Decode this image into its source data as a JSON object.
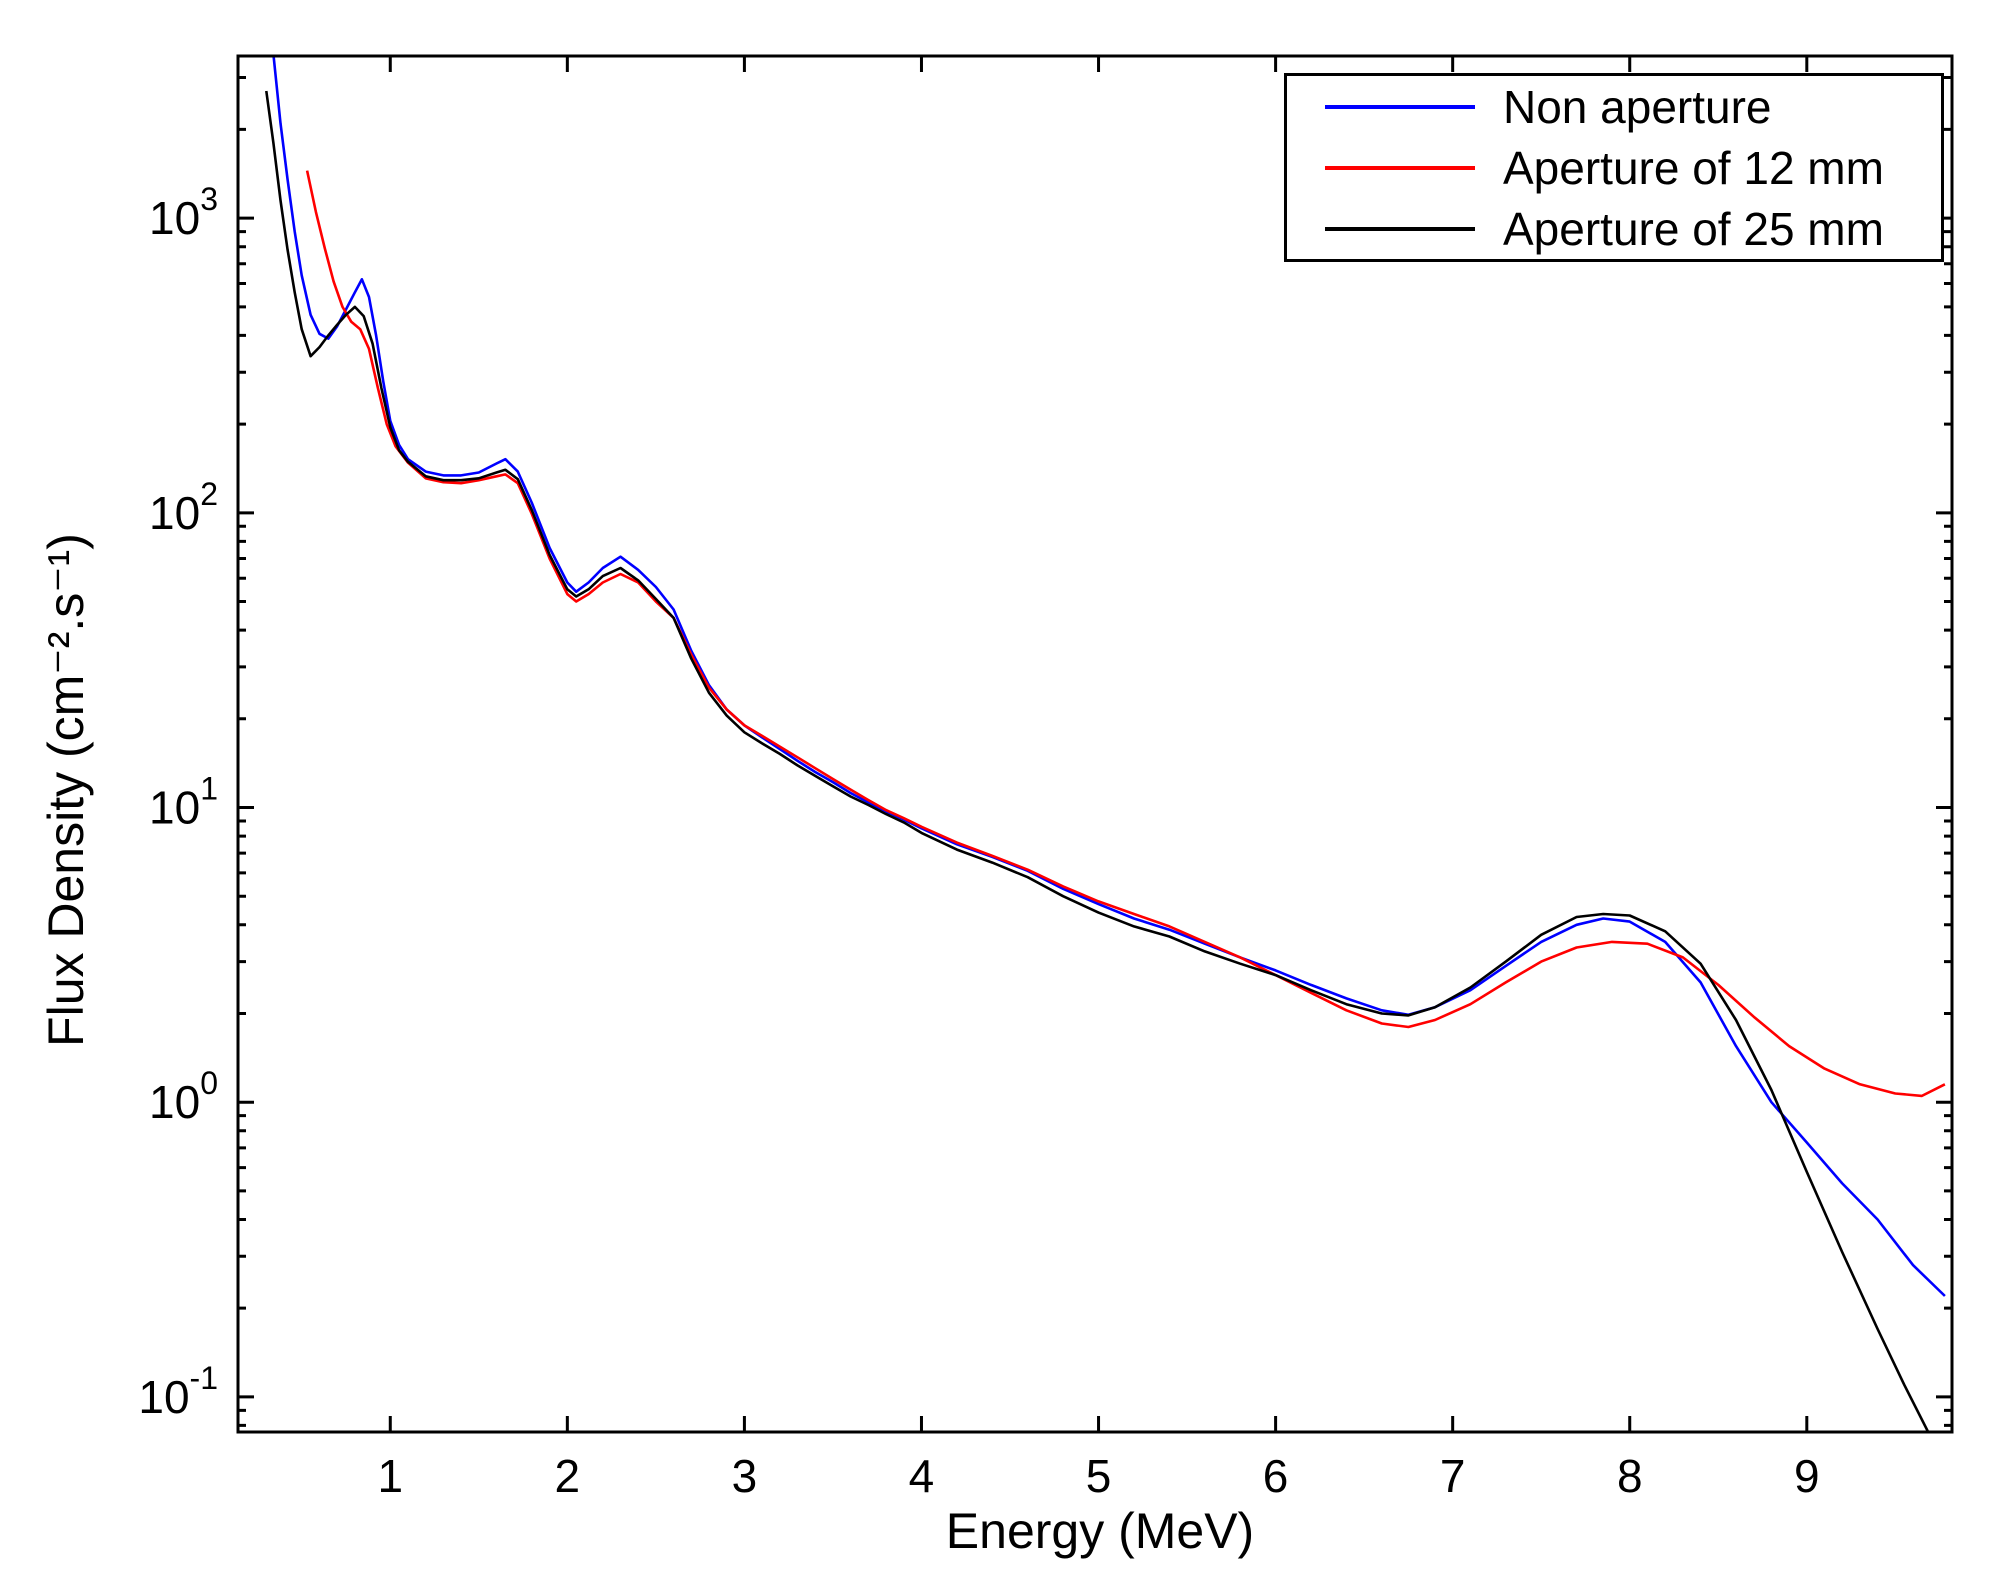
{
  "figure": {
    "background": "#ffffff"
  },
  "chart_data": {
    "type": "line",
    "title": "",
    "xlabel": "Energy (MeV)",
    "ylabel": "Flux Density (cm⁻².s⁻¹)",
    "x_ticks": [
      1,
      2,
      3,
      4,
      5,
      6,
      7,
      8,
      9
    ],
    "y_tick_base": 10,
    "y_tick_exponents": [
      -1,
      0,
      1,
      2,
      3
    ],
    "xlim": [
      0.14,
      9.82
    ],
    "ylim": [
      0.076,
      3550
    ],
    "y_scale": "log",
    "grid": false,
    "axis_color": "#000000",
    "legend": {
      "position": "top-right",
      "border_color": "#000000",
      "background": "#ffffff"
    },
    "series": [
      {
        "name": "Non aperture",
        "color": "#0000ff",
        "points": [
          [
            0.3,
            7000
          ],
          [
            0.34,
            3600
          ],
          [
            0.38,
            2100
          ],
          [
            0.42,
            1350
          ],
          [
            0.46,
            900
          ],
          [
            0.5,
            640
          ],
          [
            0.55,
            470
          ],
          [
            0.6,
            405
          ],
          [
            0.65,
            390
          ],
          [
            0.7,
            430
          ],
          [
            0.75,
            490
          ],
          [
            0.8,
            560
          ],
          [
            0.84,
            620
          ],
          [
            0.88,
            540
          ],
          [
            0.92,
            400
          ],
          [
            0.96,
            280
          ],
          [
            1.0,
            205
          ],
          [
            1.05,
            170
          ],
          [
            1.1,
            152
          ],
          [
            1.2,
            138
          ],
          [
            1.3,
            134
          ],
          [
            1.4,
            134
          ],
          [
            1.5,
            137
          ],
          [
            1.6,
            147
          ],
          [
            1.65,
            152
          ],
          [
            1.72,
            138
          ],
          [
            1.8,
            108
          ],
          [
            1.9,
            76
          ],
          [
            2.0,
            58
          ],
          [
            2.05,
            54
          ],
          [
            2.12,
            58
          ],
          [
            2.2,
            65
          ],
          [
            2.3,
            71
          ],
          [
            2.4,
            64
          ],
          [
            2.5,
            56
          ],
          [
            2.6,
            47
          ],
          [
            2.7,
            34
          ],
          [
            2.8,
            26
          ],
          [
            2.9,
            21.5
          ],
          [
            3.0,
            19
          ],
          [
            3.1,
            17.3
          ],
          [
            3.2,
            15.8
          ],
          [
            3.3,
            14.4
          ],
          [
            3.4,
            13.2
          ],
          [
            3.5,
            12.2
          ],
          [
            3.6,
            11.2
          ],
          [
            3.7,
            10.4
          ],
          [
            3.8,
            9.7
          ],
          [
            3.9,
            9.1
          ],
          [
            4.0,
            8.5
          ],
          [
            4.2,
            7.5
          ],
          [
            4.4,
            6.8
          ],
          [
            4.6,
            6.1
          ],
          [
            4.8,
            5.3
          ],
          [
            5.0,
            4.7
          ],
          [
            5.2,
            4.2
          ],
          [
            5.4,
            3.85
          ],
          [
            5.6,
            3.45
          ],
          [
            5.8,
            3.1
          ],
          [
            6.0,
            2.8
          ],
          [
            6.2,
            2.5
          ],
          [
            6.4,
            2.25
          ],
          [
            6.6,
            2.05
          ],
          [
            6.75,
            1.98
          ],
          [
            6.9,
            2.1
          ],
          [
            7.1,
            2.4
          ],
          [
            7.3,
            2.9
          ],
          [
            7.5,
            3.5
          ],
          [
            7.7,
            4.0
          ],
          [
            7.85,
            4.2
          ],
          [
            8.0,
            4.1
          ],
          [
            8.2,
            3.5
          ],
          [
            8.4,
            2.55
          ],
          [
            8.6,
            1.55
          ],
          [
            8.8,
            1.0
          ],
          [
            9.0,
            0.73
          ],
          [
            9.2,
            0.53
          ],
          [
            9.4,
            0.4
          ],
          [
            9.6,
            0.28
          ],
          [
            9.78,
            0.22
          ]
        ]
      },
      {
        "name": "Aperture of 12 mm",
        "color": "#ff0000",
        "points": [
          [
            0.53,
            1450
          ],
          [
            0.58,
            1050
          ],
          [
            0.63,
            790
          ],
          [
            0.68,
            610
          ],
          [
            0.73,
            500
          ],
          [
            0.78,
            445
          ],
          [
            0.83,
            420
          ],
          [
            0.88,
            360
          ],
          [
            0.93,
            265
          ],
          [
            0.98,
            200
          ],
          [
            1.03,
            168
          ],
          [
            1.1,
            148
          ],
          [
            1.2,
            131
          ],
          [
            1.3,
            127
          ],
          [
            1.4,
            126
          ],
          [
            1.5,
            129
          ],
          [
            1.6,
            133
          ],
          [
            1.65,
            135
          ],
          [
            1.72,
            126
          ],
          [
            1.8,
            99
          ],
          [
            1.9,
            70
          ],
          [
            2.0,
            53
          ],
          [
            2.05,
            50
          ],
          [
            2.12,
            53
          ],
          [
            2.2,
            58
          ],
          [
            2.3,
            62
          ],
          [
            2.4,
            58
          ],
          [
            2.5,
            50
          ],
          [
            2.6,
            44
          ],
          [
            2.7,
            33
          ],
          [
            2.8,
            25.5
          ],
          [
            2.9,
            21.5
          ],
          [
            3.0,
            19
          ],
          [
            3.1,
            17.5
          ],
          [
            3.2,
            16.1
          ],
          [
            3.3,
            14.8
          ],
          [
            3.4,
            13.6
          ],
          [
            3.5,
            12.5
          ],
          [
            3.6,
            11.5
          ],
          [
            3.7,
            10.6
          ],
          [
            3.8,
            9.8
          ],
          [
            3.9,
            9.2
          ],
          [
            4.0,
            8.6
          ],
          [
            4.2,
            7.6
          ],
          [
            4.4,
            6.85
          ],
          [
            4.6,
            6.15
          ],
          [
            4.8,
            5.4
          ],
          [
            5.0,
            4.8
          ],
          [
            5.2,
            4.35
          ],
          [
            5.4,
            3.95
          ],
          [
            5.6,
            3.5
          ],
          [
            5.8,
            3.1
          ],
          [
            6.0,
            2.7
          ],
          [
            6.2,
            2.35
          ],
          [
            6.4,
            2.05
          ],
          [
            6.6,
            1.85
          ],
          [
            6.75,
            1.8
          ],
          [
            6.9,
            1.9
          ],
          [
            7.1,
            2.15
          ],
          [
            7.3,
            2.55
          ],
          [
            7.5,
            3.0
          ],
          [
            7.7,
            3.35
          ],
          [
            7.9,
            3.5
          ],
          [
            8.1,
            3.45
          ],
          [
            8.3,
            3.1
          ],
          [
            8.5,
            2.5
          ],
          [
            8.7,
            1.95
          ],
          [
            8.9,
            1.55
          ],
          [
            9.1,
            1.3
          ],
          [
            9.3,
            1.15
          ],
          [
            9.5,
            1.07
          ],
          [
            9.65,
            1.05
          ],
          [
            9.78,
            1.15
          ]
        ]
      },
      {
        "name": "Aperture of 25 mm",
        "color": "#000000",
        "points": [
          [
            0.3,
            2700
          ],
          [
            0.34,
            1800
          ],
          [
            0.38,
            1150
          ],
          [
            0.42,
            780
          ],
          [
            0.46,
            560
          ],
          [
            0.5,
            420
          ],
          [
            0.55,
            340
          ],
          [
            0.6,
            365
          ],
          [
            0.65,
            400
          ],
          [
            0.7,
            435
          ],
          [
            0.75,
            470
          ],
          [
            0.8,
            500
          ],
          [
            0.85,
            465
          ],
          [
            0.9,
            375
          ],
          [
            0.95,
            265
          ],
          [
            1.0,
            195
          ],
          [
            1.05,
            163
          ],
          [
            1.1,
            149
          ],
          [
            1.2,
            133
          ],
          [
            1.3,
            129
          ],
          [
            1.4,
            129
          ],
          [
            1.5,
            131
          ],
          [
            1.6,
            137
          ],
          [
            1.65,
            140
          ],
          [
            1.72,
            130
          ],
          [
            1.8,
            102
          ],
          [
            1.9,
            72
          ],
          [
            2.0,
            55
          ],
          [
            2.05,
            52
          ],
          [
            2.12,
            55
          ],
          [
            2.2,
            61
          ],
          [
            2.3,
            65
          ],
          [
            2.4,
            59
          ],
          [
            2.5,
            51
          ],
          [
            2.6,
            44
          ],
          [
            2.7,
            32
          ],
          [
            2.8,
            24.5
          ],
          [
            2.9,
            20.5
          ],
          [
            3.0,
            18
          ],
          [
            3.1,
            16.5
          ],
          [
            3.2,
            15.2
          ],
          [
            3.3,
            13.9
          ],
          [
            3.4,
            12.8
          ],
          [
            3.5,
            11.8
          ],
          [
            3.6,
            10.9
          ],
          [
            3.7,
            10.2
          ],
          [
            3.8,
            9.5
          ],
          [
            3.9,
            8.9
          ],
          [
            4.0,
            8.2
          ],
          [
            4.2,
            7.2
          ],
          [
            4.4,
            6.5
          ],
          [
            4.6,
            5.8
          ],
          [
            4.8,
            5.0
          ],
          [
            5.0,
            4.4
          ],
          [
            5.2,
            3.95
          ],
          [
            5.4,
            3.65
          ],
          [
            5.6,
            3.25
          ],
          [
            5.8,
            2.95
          ],
          [
            6.0,
            2.7
          ],
          [
            6.2,
            2.4
          ],
          [
            6.4,
            2.15
          ],
          [
            6.6,
            2.0
          ],
          [
            6.75,
            1.97
          ],
          [
            6.9,
            2.1
          ],
          [
            7.1,
            2.45
          ],
          [
            7.3,
            3.0
          ],
          [
            7.5,
            3.7
          ],
          [
            7.7,
            4.25
          ],
          [
            7.85,
            4.35
          ],
          [
            8.0,
            4.3
          ],
          [
            8.2,
            3.8
          ],
          [
            8.4,
            2.95
          ],
          [
            8.6,
            1.9
          ],
          [
            8.8,
            1.1
          ],
          [
            9.0,
            0.58
          ],
          [
            9.2,
            0.31
          ],
          [
            9.4,
            0.17
          ],
          [
            9.55,
            0.11
          ],
          [
            9.7,
            0.073
          ]
        ]
      }
    ]
  }
}
